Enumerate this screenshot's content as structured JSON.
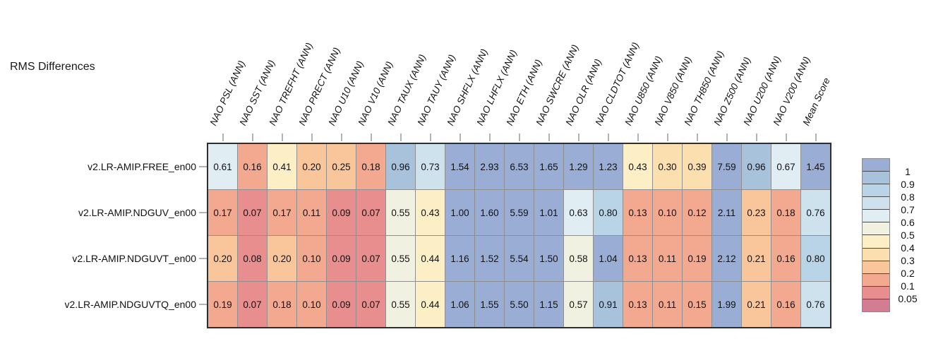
{
  "title": "RMS Differences",
  "chart_data": {
    "type": "heatmap",
    "title": "RMS Differences",
    "columns": [
      "NAO PSL (ANN)",
      "NAO SST (ANN)",
      "NAO TREFHT (ANN)",
      "NAO PRECT (ANN)",
      "NAO U10 (ANN)",
      "NAO V10 (ANN)",
      "NAO TAUX (ANN)",
      "NAO TAUY (ANN)",
      "NAO SHFLX (ANN)",
      "NAO LHFLX (ANN)",
      "NAO ETH (ANN)",
      "NAO SWCRE (ANN)",
      "NAO OLR (ANN)",
      "NAO CLDTOT (ANN)",
      "NAO U850 (ANN)",
      "NAO V850 (ANN)",
      "NAO TH850 (ANN)",
      "NAO Z500 (ANN)",
      "NAO U200 (ANN)",
      "NAO V200 (ANN)",
      "Mean Score"
    ],
    "rows": [
      "v2.LR-AMIP.FREE_en00",
      "v2.LR-AMIP.NDGUV_en00",
      "v2.LR-AMIP.NDGUVT_en00",
      "v2.LR-AMIP.NDGUVTQ_en00"
    ],
    "values": [
      [
        "0.61",
        "0.16",
        "0.41",
        "0.20",
        "0.25",
        "0.18",
        "0.96",
        "0.73",
        "1.54",
        "2.93",
        "6.53",
        "1.65",
        "1.29",
        "1.23",
        "0.43",
        "0.30",
        "0.39",
        "7.59",
        "0.96",
        "0.67",
        "1.45"
      ],
      [
        "0.17",
        "0.07",
        "0.17",
        "0.11",
        "0.09",
        "0.07",
        "0.55",
        "0.43",
        "1.00",
        "1.60",
        "5.59",
        "1.01",
        "0.63",
        "0.80",
        "0.13",
        "0.10",
        "0.12",
        "2.11",
        "0.23",
        "0.18",
        "0.76"
      ],
      [
        "0.20",
        "0.08",
        "0.20",
        "0.10",
        "0.09",
        "0.07",
        "0.55",
        "0.44",
        "1.16",
        "1.52",
        "5.54",
        "1.50",
        "0.58",
        "1.04",
        "0.13",
        "0.11",
        "0.19",
        "2.12",
        "0.21",
        "0.16",
        "0.80"
      ],
      [
        "0.19",
        "0.07",
        "0.18",
        "0.10",
        "0.09",
        "0.07",
        "0.55",
        "0.44",
        "1.06",
        "1.55",
        "5.50",
        "1.15",
        "0.57",
        "0.91",
        "0.13",
        "0.11",
        "0.15",
        "1.99",
        "0.21",
        "0.16",
        "0.76"
      ]
    ],
    "legend": {
      "tick_labels": [
        "1",
        "0.9",
        "0.8",
        "0.7",
        "0.6",
        "0.5",
        "0.4",
        "0.3",
        "0.2",
        "0.1",
        "0.05"
      ],
      "thresholds_ascending": [
        0.05,
        0.1,
        0.2,
        0.3,
        0.4,
        0.5,
        0.6,
        0.7,
        0.8,
        0.9,
        1
      ],
      "band_colors_top_to_bottom": [
        "#9aadd5",
        "#a9c2dc",
        "#b9d4e6",
        "#cee2ee",
        "#e0edf3",
        "#f1f1e1",
        "#fcefc5",
        "#fcdfae",
        "#f9c69c",
        "#f2a98f",
        "#e88e8e",
        "#d27d92"
      ]
    },
    "layout": {
      "legend_position": "right",
      "grid_lines": "gray",
      "column_labels_rotated": true
    }
  }
}
